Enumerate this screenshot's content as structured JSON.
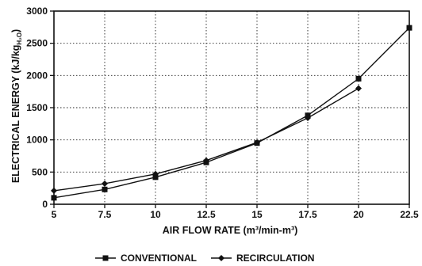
{
  "chart_data": {
    "type": "line",
    "xlabel": "AIR FLOW RATE  (m³/min-m³)",
    "ylabel": "ELECTRICAL ENERGY  (kJ/kg",
    "ylabel_sub": "H₂O",
    "ylabel_close": ")",
    "xlim": [
      5,
      22.5
    ],
    "ylim": [
      0,
      3000
    ],
    "grid": true,
    "legend_position": "bottom",
    "x_ticks": [
      {
        "value": 5,
        "label": "5"
      },
      {
        "value": 7.5,
        "label": "7.5"
      },
      {
        "value": 10,
        "label": "10"
      },
      {
        "value": 12.5,
        "label": "12.5"
      },
      {
        "value": 15,
        "label": "15"
      },
      {
        "value": 17.5,
        "label": "17.5"
      },
      {
        "value": 20,
        "label": "20"
      },
      {
        "value": 22.5,
        "label": "22.5"
      }
    ],
    "y_ticks": [
      {
        "value": 0,
        "label": "0"
      },
      {
        "value": 500,
        "label": "500"
      },
      {
        "value": 1000,
        "label": "1000"
      },
      {
        "value": 1500,
        "label": "1500"
      },
      {
        "value": 2000,
        "label": "2000"
      },
      {
        "value": 2500,
        "label": "2500"
      },
      {
        "value": 3000,
        "label": "3000"
      }
    ],
    "series": [
      {
        "name": "CONVENTIONAL",
        "marker": "square",
        "x": [
          5,
          7.5,
          10,
          12.5,
          15,
          17.5,
          20,
          22.5
        ],
        "y": [
          100,
          230,
          420,
          650,
          950,
          1380,
          1950,
          2740
        ]
      },
      {
        "name": "RECIRCULATION",
        "marker": "diamond",
        "x": [
          5,
          7.5,
          10,
          12.5,
          15,
          17.5,
          20
        ],
        "y": [
          210,
          320,
          470,
          680,
          960,
          1340,
          1800
        ]
      }
    ]
  }
}
